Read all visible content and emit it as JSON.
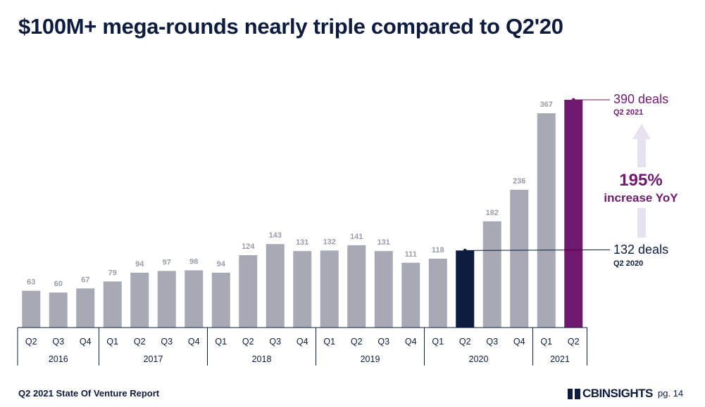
{
  "title": "$100M+ mega-rounds nearly triple compared to Q2'20",
  "footer": {
    "report": "Q2 2021 State Of Venture Report",
    "logo_text": "CBINSIGHTS",
    "page": "pg. 14"
  },
  "colors": {
    "default_bar": "#a7a9b4",
    "highlight_prior": "#0d1b3e",
    "highlight_current": "#6f1a6f",
    "text": "#0d1b3e",
    "value_label": "#9a9ca8",
    "arrow": "#e6e2ee"
  },
  "chart_data": {
    "type": "bar",
    "quarters": [
      "Q2",
      "Q3",
      "Q4",
      "Q1",
      "Q2",
      "Q3",
      "Q4",
      "Q1",
      "Q2",
      "Q3",
      "Q4",
      "Q1",
      "Q2",
      "Q3",
      "Q4",
      "Q1",
      "Q2",
      "Q3",
      "Q4",
      "Q1",
      "Q2"
    ],
    "years": [
      {
        "label": "2016",
        "count": 3
      },
      {
        "label": "2017",
        "count": 4
      },
      {
        "label": "2018",
        "count": 4
      },
      {
        "label": "2019",
        "count": 4
      },
      {
        "label": "2020",
        "count": 4
      },
      {
        "label": "2021",
        "count": 2
      }
    ],
    "values": [
      63,
      60,
      67,
      79,
      94,
      97,
      98,
      94,
      124,
      143,
      131,
      132,
      141,
      131,
      111,
      118,
      132,
      182,
      236,
      367,
      390
    ],
    "value_labels": [
      "63",
      "60",
      "67",
      "79",
      "94",
      "97",
      "98",
      "94",
      "124",
      "143",
      "131",
      "132",
      "141",
      "131",
      "111",
      "118",
      "",
      "182",
      "236",
      "367",
      ""
    ],
    "highlights": {
      "prior_index": 16,
      "current_index": 20
    },
    "ylim": [
      0,
      390
    ],
    "annotations": {
      "current_deals": "390 deals",
      "current_period": "Q2 2021",
      "prior_deals": "132 deals",
      "prior_period": "Q2 2020",
      "increase_pct": "195%",
      "increase_text": "increase YoY"
    }
  }
}
